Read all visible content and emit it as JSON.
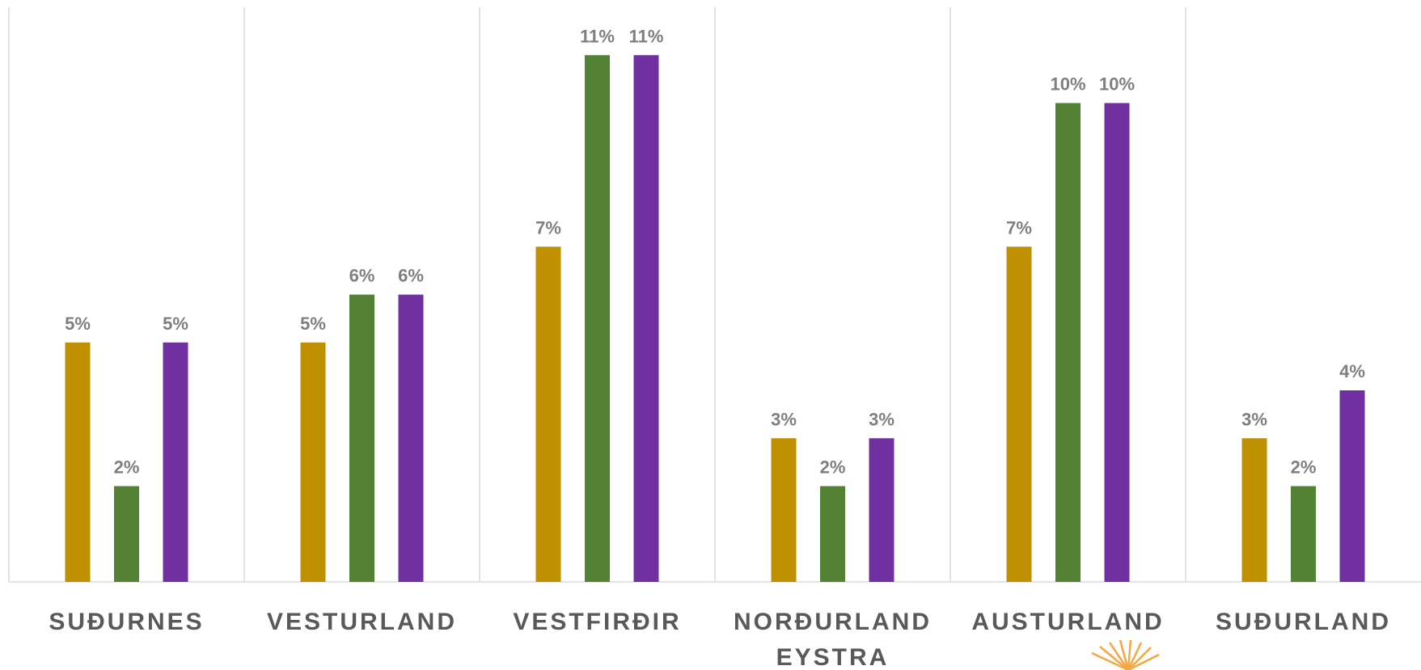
{
  "chart_data": {
    "type": "bar",
    "categories": [
      "SUÐURNES",
      "VESTURLAND",
      "VESTFIRÐIR",
      "NORÐURLAND EYSTRA",
      "AUSTURLAND",
      "SUÐURLAND"
    ],
    "series": [
      {
        "color": "#bf9000",
        "values": [
          5,
          5,
          7,
          3,
          7,
          3
        ],
        "value_labels": [
          "5%",
          "5%",
          "7%",
          "3%",
          "7%",
          "3%"
        ]
      },
      {
        "color": "#548235",
        "values": [
          2,
          6,
          11,
          2,
          10,
          2
        ],
        "value_labels": [
          "2%",
          "6%",
          "11%",
          "2%",
          "10%",
          "2%"
        ]
      },
      {
        "color": "#7030a0",
        "values": [
          5,
          6,
          11,
          3,
          10,
          4
        ],
        "value_labels": [
          "5%",
          "6%",
          "11%",
          "3%",
          "10%",
          "4%"
        ]
      }
    ],
    "ylim": [
      0,
      12
    ]
  }
}
